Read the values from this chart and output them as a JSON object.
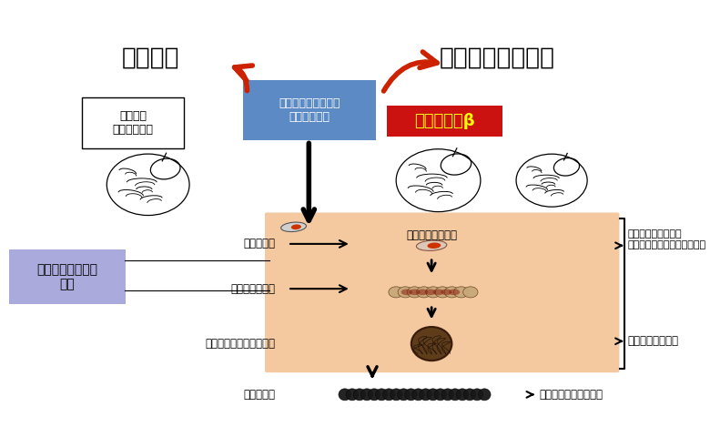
{
  "brain_aging_label": "脳の老化",
  "alzheimer_label": "アルツハイマー病",
  "physio_label": "生理現象\nとしての老化",
  "enzyme_label": "タウをリン酸化する\n酵素の活性化",
  "amyloid_label": "アミロイドβ",
  "treatment_label": "治療で目指すべき\n箇所",
  "single_tau": "単体のタウ",
  "tau_bind": "タウ同士が結合",
  "tau_aggregate": "タウが凝集して不溶性に",
  "tau_fiber": "タウの線維",
  "phospho_tau": "リン酸化したタウ",
  "synapse_loss": "シナプスがなくなり\n新しいことを覚えにくくなる",
  "neuron_death": "ニューロンが死滅",
  "nerve_fiber": "神経原線維変化の形成",
  "enzyme_box_color": "#5b8ac4",
  "amyloid_box_color": "#cc1111",
  "treatment_box_color": "#aaaadd",
  "bg_rect_color": "#f5c9a0",
  "bg_color": "#ffffff"
}
